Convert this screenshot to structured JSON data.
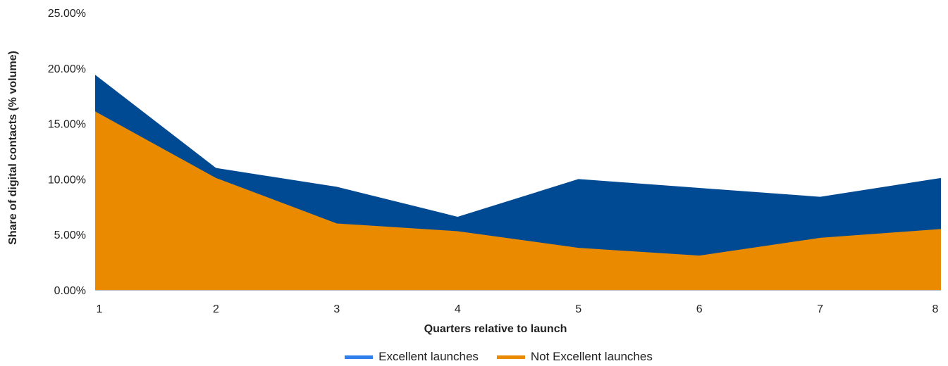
{
  "chart_data": {
    "type": "area",
    "title": "",
    "xlabel": "Quarters relative to launch",
    "ylabel": "Share of digital contacts (% volume)",
    "x": [
      1,
      2,
      3,
      4,
      5,
      6,
      7,
      8
    ],
    "ylim": [
      0,
      25
    ],
    "yticks": [
      "0.00%",
      "5.00%",
      "10.00%",
      "15.00%",
      "20.00%",
      "25.00%"
    ],
    "grid": false,
    "legend_position": "bottom",
    "series": [
      {
        "name": "Excellent launches",
        "color": "#004a93",
        "legend_color": "#2f80ed",
        "values": [
          19.4,
          11.0,
          9.3,
          6.6,
          10.0,
          9.2,
          8.4,
          10.1
        ]
      },
      {
        "name": "Not Excellent launches",
        "color": "#ea8a00",
        "legend_color": "#ea8a00",
        "values": [
          16.1,
          10.1,
          6.0,
          5.3,
          3.8,
          3.1,
          4.7,
          5.5
        ]
      }
    ]
  }
}
